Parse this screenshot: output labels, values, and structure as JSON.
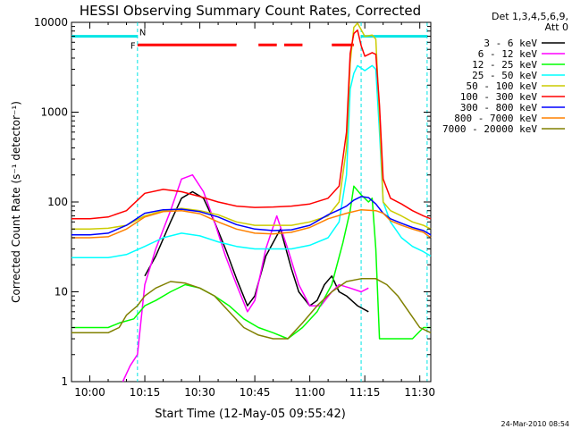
{
  "chart_data": {
    "type": "line",
    "title": "HESSI Observing Summary Count Rates, Corrected",
    "xlabel": "Start Time (12-May-05 09:55:42)",
    "ylabel": "Corrected Count Rate (s⁻¹ detector⁻¹)",
    "y_scale": "log",
    "ylim": [
      1,
      10000
    ],
    "xlim": [
      "09:55",
      "11:33"
    ],
    "x_ticks": [
      "10:00",
      "10:15",
      "10:30",
      "10:45",
      "11:00",
      "11:15",
      "11:30"
    ],
    "y_ticks": [
      "1",
      "10",
      "100",
      "1000",
      "10000"
    ],
    "legend_header": [
      "Det 1,3,4,5,6,9,",
      "Att 0"
    ],
    "timestamp": "24-Mar-2010 08:54",
    "flags": {
      "N_label": "N",
      "F_label": "F",
      "N_intervals": [
        [
          "09:55",
          "10:13"
        ],
        [
          "11:14",
          "11:32"
        ]
      ],
      "F_intervals": [
        [
          "10:13",
          "10:40"
        ],
        [
          "10:46",
          "10:51"
        ],
        [
          "10:53",
          "10:58"
        ],
        [
          "11:06",
          "11:12"
        ]
      ]
    },
    "vertical_lines": [
      "10:13",
      "11:14",
      "11:32"
    ],
    "series": [
      {
        "name": "3 - 6 keV",
        "color": "#000000",
        "points": [
          [
            "10:15",
            15
          ],
          [
            "10:18",
            25
          ],
          [
            "10:22",
            60
          ],
          [
            "10:25",
            110
          ],
          [
            "10:28",
            130
          ],
          [
            "10:31",
            110
          ],
          [
            "10:34",
            60
          ],
          [
            "10:37",
            30
          ],
          [
            "10:40",
            14
          ],
          [
            "10:43",
            7
          ],
          [
            "10:45",
            9
          ],
          [
            "10:48",
            25
          ],
          [
            "10:52",
            50
          ],
          [
            "10:55",
            18
          ],
          [
            "10:57",
            10
          ],
          [
            "11:00",
            7
          ],
          [
            "11:02",
            8
          ],
          [
            "11:04",
            12
          ],
          [
            "11:06",
            15
          ],
          [
            "11:08",
            10
          ],
          [
            "11:10",
            9
          ],
          [
            "11:13",
            7
          ],
          [
            "11:16",
            6
          ]
        ]
      },
      {
        "name": "6 - 12 keV",
        "color": "#ff00ff",
        "points": [
          [
            "10:09",
            1
          ],
          [
            "10:11",
            1.5
          ],
          [
            "10:13",
            2
          ],
          [
            "10:15",
            12
          ],
          [
            "10:18",
            30
          ],
          [
            "10:22",
            80
          ],
          [
            "10:25",
            180
          ],
          [
            "10:28",
            200
          ],
          [
            "10:31",
            130
          ],
          [
            "10:34",
            60
          ],
          [
            "10:37",
            25
          ],
          [
            "10:40",
            12
          ],
          [
            "10:43",
            6
          ],
          [
            "10:45",
            8
          ],
          [
            "10:48",
            30
          ],
          [
            "10:51",
            70
          ],
          [
            "10:54",
            30
          ],
          [
            "10:57",
            12
          ],
          [
            "11:00",
            7
          ],
          [
            "11:03",
            7
          ],
          [
            "11:06",
            10
          ],
          [
            "11:08",
            12
          ],
          [
            "11:11",
            11
          ],
          [
            "11:14",
            10
          ],
          [
            "11:16",
            11
          ]
        ]
      },
      {
        "name": "12 - 25 keV",
        "color": "#00ff00",
        "points": [
          [
            "09:55",
            4
          ],
          [
            "10:00",
            4
          ],
          [
            "10:05",
            4
          ],
          [
            "10:08",
            4.5
          ],
          [
            "10:12",
            5
          ],
          [
            "10:15",
            7
          ],
          [
            "10:18",
            8
          ],
          [
            "10:22",
            10
          ],
          [
            "10:26",
            12
          ],
          [
            "10:30",
            11
          ],
          [
            "10:34",
            9
          ],
          [
            "10:38",
            7
          ],
          [
            "10:42",
            5
          ],
          [
            "10:46",
            4
          ],
          [
            "10:50",
            3.5
          ],
          [
            "10:54",
            3
          ],
          [
            "10:58",
            4
          ],
          [
            "11:02",
            6
          ],
          [
            "11:06",
            12
          ],
          [
            "11:09",
            35
          ],
          [
            "11:11",
            80
          ],
          [
            "11:12",
            150
          ],
          [
            "11:14",
            120
          ],
          [
            "11:16",
            100
          ],
          [
            "11:17",
            110
          ],
          [
            "11:18",
            30
          ],
          [
            "11:19",
            3
          ],
          [
            "11:22",
            3
          ],
          [
            "11:25",
            3
          ],
          [
            "11:28",
            3
          ],
          [
            "11:31",
            4
          ],
          [
            "11:33",
            4
          ]
        ]
      },
      {
        "name": "25 - 50 keV",
        "color": "#00ffff",
        "points": [
          [
            "09:55",
            24
          ],
          [
            "10:00",
            24
          ],
          [
            "10:05",
            24
          ],
          [
            "10:10",
            26
          ],
          [
            "10:15",
            32
          ],
          [
            "10:20",
            40
          ],
          [
            "10:25",
            45
          ],
          [
            "10:30",
            42
          ],
          [
            "10:35",
            36
          ],
          [
            "10:40",
            32
          ],
          [
            "10:45",
            30
          ],
          [
            "10:50",
            30
          ],
          [
            "10:55",
            30
          ],
          [
            "11:00",
            33
          ],
          [
            "11:05",
            40
          ],
          [
            "11:08",
            60
          ],
          [
            "11:10",
            200
          ],
          [
            "11:11",
            1800
          ],
          [
            "11:12",
            2700
          ],
          [
            "11:13",
            3300
          ],
          [
            "11:15",
            2900
          ],
          [
            "11:17",
            3300
          ],
          [
            "11:18",
            3000
          ],
          [
            "11:19",
            600
          ],
          [
            "11:20",
            100
          ],
          [
            "11:22",
            60
          ],
          [
            "11:25",
            40
          ],
          [
            "11:28",
            32
          ],
          [
            "11:31",
            28
          ],
          [
            "11:33",
            25
          ]
        ]
      },
      {
        "name": "50 - 100 keV",
        "color": "#cccc00",
        "points": [
          [
            "09:55",
            50
          ],
          [
            "10:00",
            50
          ],
          [
            "10:05",
            51
          ],
          [
            "10:10",
            55
          ],
          [
            "10:15",
            70
          ],
          [
            "10:20",
            80
          ],
          [
            "10:25",
            85
          ],
          [
            "10:30",
            80
          ],
          [
            "10:35",
            72
          ],
          [
            "10:40",
            60
          ],
          [
            "10:45",
            55
          ],
          [
            "10:50",
            55
          ],
          [
            "10:55",
            55
          ],
          [
            "11:00",
            60
          ],
          [
            "11:05",
            70
          ],
          [
            "11:08",
            100
          ],
          [
            "11:10",
            400
          ],
          [
            "11:11",
            3500
          ],
          [
            "11:12",
            8800
          ],
          [
            "11:13",
            9800
          ],
          [
            "11:15",
            7000
          ],
          [
            "11:17",
            7200
          ],
          [
            "11:18",
            6500
          ],
          [
            "11:19",
            900
          ],
          [
            "11:20",
            100
          ],
          [
            "11:22",
            80
          ],
          [
            "11:25",
            70
          ],
          [
            "11:28",
            60
          ],
          [
            "11:31",
            55
          ],
          [
            "11:33",
            50
          ]
        ]
      },
      {
        "name": "100 - 300 keV",
        "color": "#ff0000",
        "points": [
          [
            "09:55",
            65
          ],
          [
            "10:00",
            65
          ],
          [
            "10:05",
            68
          ],
          [
            "10:10",
            80
          ],
          [
            "10:15",
            125
          ],
          [
            "10:20",
            138
          ],
          [
            "10:25",
            130
          ],
          [
            "10:30",
            115
          ],
          [
            "10:35",
            100
          ],
          [
            "10:40",
            90
          ],
          [
            "10:45",
            87
          ],
          [
            "10:50",
            88
          ],
          [
            "10:55",
            90
          ],
          [
            "11:00",
            95
          ],
          [
            "11:05",
            110
          ],
          [
            "11:08",
            150
          ],
          [
            "11:10",
            600
          ],
          [
            "11:11",
            4500
          ],
          [
            "11:12",
            7500
          ],
          [
            "11:13",
            8200
          ],
          [
            "11:14",
            5500
          ],
          [
            "11:15",
            4200
          ],
          [
            "11:17",
            4600
          ],
          [
            "11:18",
            4400
          ],
          [
            "11:19",
            1200
          ],
          [
            "11:20",
            180
          ],
          [
            "11:22",
            110
          ],
          [
            "11:25",
            95
          ],
          [
            "11:28",
            80
          ],
          [
            "11:31",
            70
          ],
          [
            "11:33",
            65
          ]
        ]
      },
      {
        "name": "300 - 800 keV",
        "color": "#0000ff",
        "points": [
          [
            "09:55",
            43
          ],
          [
            "10:00",
            43
          ],
          [
            "10:05",
            45
          ],
          [
            "10:10",
            55
          ],
          [
            "10:15",
            75
          ],
          [
            "10:20",
            82
          ],
          [
            "10:25",
            83
          ],
          [
            "10:30",
            78
          ],
          [
            "10:35",
            68
          ],
          [
            "10:40",
            56
          ],
          [
            "10:45",
            50
          ],
          [
            "10:50",
            48
          ],
          [
            "10:55",
            49
          ],
          [
            "11:00",
            55
          ],
          [
            "11:05",
            72
          ],
          [
            "11:08",
            82
          ],
          [
            "11:10",
            90
          ],
          [
            "11:12",
            105
          ],
          [
            "11:14",
            115
          ],
          [
            "11:16",
            112
          ],
          [
            "11:18",
            95
          ],
          [
            "11:20",
            75
          ],
          [
            "11:22",
            65
          ],
          [
            "11:25",
            58
          ],
          [
            "11:28",
            52
          ],
          [
            "11:31",
            48
          ],
          [
            "11:33",
            43
          ]
        ]
      },
      {
        "name": "800 - 7000 keV",
        "color": "#ff8000",
        "points": [
          [
            "09:55",
            40
          ],
          [
            "10:00",
            40
          ],
          [
            "10:05",
            41
          ],
          [
            "10:10",
            50
          ],
          [
            "10:15",
            68
          ],
          [
            "10:20",
            78
          ],
          [
            "10:25",
            80
          ],
          [
            "10:30",
            74
          ],
          [
            "10:35",
            60
          ],
          [
            "10:40",
            50
          ],
          [
            "10:45",
            45
          ],
          [
            "10:50",
            44
          ],
          [
            "10:55",
            46
          ],
          [
            "11:00",
            52
          ],
          [
            "11:05",
            65
          ],
          [
            "11:10",
            75
          ],
          [
            "11:14",
            82
          ],
          [
            "11:18",
            80
          ],
          [
            "11:20",
            75
          ],
          [
            "11:22",
            62
          ],
          [
            "11:25",
            55
          ],
          [
            "11:28",
            50
          ],
          [
            "11:31",
            46
          ],
          [
            "11:33",
            40
          ]
        ]
      },
      {
        "name": "7000 - 20000 keV",
        "color": "#808000",
        "points": [
          [
            "09:55",
            3.5
          ],
          [
            "10:00",
            3.5
          ],
          [
            "10:05",
            3.5
          ],
          [
            "10:08",
            4
          ],
          [
            "10:10",
            5.5
          ],
          [
            "10:13",
            7
          ],
          [
            "10:15",
            9
          ],
          [
            "10:18",
            11
          ],
          [
            "10:22",
            13
          ],
          [
            "10:26",
            12.5
          ],
          [
            "10:30",
            11
          ],
          [
            "10:34",
            9
          ],
          [
            "10:38",
            6
          ],
          [
            "10:42",
            4
          ],
          [
            "10:46",
            3.3
          ],
          [
            "10:50",
            3
          ],
          [
            "10:54",
            3
          ],
          [
            "10:58",
            4.5
          ],
          [
            "11:02",
            7
          ],
          [
            "11:06",
            10
          ],
          [
            "11:10",
            13
          ],
          [
            "11:14",
            14
          ],
          [
            "11:18",
            14
          ],
          [
            "11:21",
            12
          ],
          [
            "11:24",
            9
          ],
          [
            "11:27",
            6
          ],
          [
            "11:30",
            4
          ],
          [
            "11:33",
            3.5
          ]
        ]
      }
    ]
  }
}
